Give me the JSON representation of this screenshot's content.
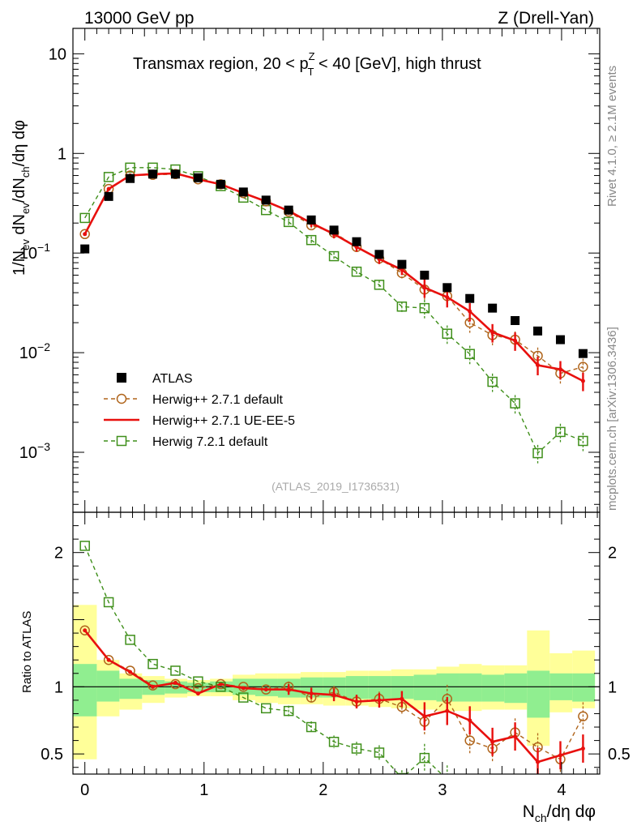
{
  "chart_data": [
    {
      "type": "scatter",
      "panel": "main",
      "header_left": "13000 GeV pp",
      "header_right": "Z (Drell-Yan)",
      "title": "Transmax region, 20 < p_T^Z < 40 [GeV], high thrust",
      "title_parts": {
        "pre": "Transmax region, 20 < p",
        "sup": "Z",
        "sub": "T",
        "post": " < 40 [GeV], high thrust"
      },
      "ylabel": "1/N_ev dN_ev/dN_ch/dη dφ",
      "yscale": "log",
      "ylim": [
        0.00025,
        18
      ],
      "xlim": [
        -0.1,
        4.32
      ],
      "y_ticks": [
        {
          "value": 10,
          "label": "10"
        },
        {
          "value": 1,
          "label": "1"
        },
        {
          "value": 0.1,
          "base": "10",
          "exp": "−1"
        },
        {
          "value": 0.01,
          "base": "10",
          "exp": "−2"
        },
        {
          "value": 0.001,
          "base": "10",
          "exp": "−3"
        }
      ],
      "side_label_top": "Rivet 4.1.0, ≥ 2.1M events",
      "side_label_bottom": "mcplots.cern.ch [arXiv:1306.3436]",
      "analysis_id": "(ATLAS_2019_I1736531)",
      "x": [
        0.0,
        0.2,
        0.38,
        0.57,
        0.76,
        0.95,
        1.14,
        1.33,
        1.52,
        1.71,
        1.9,
        2.09,
        2.28,
        2.47,
        2.66,
        2.85,
        3.04,
        3.23,
        3.42,
        3.61,
        3.8,
        3.99,
        4.18
      ],
      "series": [
        {
          "name": "ATLAS",
          "style": "data",
          "values": [
            0.11,
            0.37,
            0.56,
            0.62,
            0.62,
            0.57,
            0.49,
            0.41,
            0.34,
            0.27,
            0.215,
            0.17,
            0.13,
            0.097,
            0.077,
            0.06,
            0.045,
            0.035,
            0.028,
            0.021,
            0.0165,
            0.0135,
            0.0098
          ]
        },
        {
          "name": "Herwig++ 2.7.1 default",
          "style": "circle",
          "values": [
            0.155,
            0.44,
            0.6,
            0.61,
            0.62,
            0.55,
            0.49,
            0.4,
            0.33,
            0.26,
            0.19,
            0.16,
            0.115,
            0.088,
            0.063,
            0.043,
            0.037,
            0.02,
            0.015,
            0.0135,
            0.0093,
            0.0062,
            0.0072
          ]
        },
        {
          "name": "Herwig++ 2.7.1 UE-EE-5",
          "style": "line",
          "values": [
            0.155,
            0.44,
            0.6,
            0.62,
            0.63,
            0.55,
            0.49,
            0.4,
            0.33,
            0.265,
            0.2,
            0.155,
            0.115,
            0.087,
            0.068,
            0.045,
            0.036,
            0.026,
            0.016,
            0.0132,
            0.0075,
            0.0068,
            0.0052
          ]
        },
        {
          "name": "Herwig 7.2.1 default",
          "style": "square",
          "values": [
            0.225,
            0.58,
            0.72,
            0.72,
            0.69,
            0.59,
            0.47,
            0.36,
            0.27,
            0.205,
            0.135,
            0.093,
            0.065,
            0.048,
            0.029,
            0.028,
            0.0155,
            0.0097,
            0.0051,
            0.0031,
            0.00098,
            0.0016,
            0.0013
          ]
        }
      ]
    },
    {
      "type": "scatter",
      "panel": "ratio",
      "ylabel": "Ratio to ATLAS",
      "xlabel": "N_ch/dη dφ",
      "ylim": [
        0.35,
        2.3
      ],
      "y_ticks": [
        {
          "value": 2,
          "label": "2"
        },
        {
          "value": 1,
          "label": "1"
        },
        {
          "value": 0.5,
          "label": "0.5"
        }
      ],
      "x_ticks": [
        {
          "value": 0,
          "label": "0"
        },
        {
          "value": 1,
          "label": "1"
        },
        {
          "value": 2,
          "label": "2"
        },
        {
          "value": 3,
          "label": "3"
        },
        {
          "value": 4,
          "label": "4"
        }
      ],
      "x": [
        0.0,
        0.2,
        0.38,
        0.57,
        0.76,
        0.95,
        1.14,
        1.33,
        1.52,
        1.71,
        1.9,
        2.09,
        2.28,
        2.47,
        2.66,
        2.85,
        3.04,
        3.23,
        3.42,
        3.61,
        3.8,
        3.99,
        4.18
      ],
      "bin_edges": [
        -0.1,
        0.1,
        0.29,
        0.48,
        0.67,
        0.86,
        1.05,
        1.24,
        1.43,
        1.62,
        1.81,
        2.0,
        2.19,
        2.38,
        2.57,
        2.76,
        2.95,
        3.14,
        3.33,
        3.52,
        3.71,
        3.9,
        4.09,
        4.28
      ],
      "band_yellow": [
        [
          0.46,
          1.61
        ],
        [
          0.78,
          1.2
        ],
        [
          0.83,
          1.1
        ],
        [
          0.88,
          1.08
        ],
        [
          0.92,
          1.06
        ],
        [
          0.93,
          1.05
        ],
        [
          0.93,
          1.06
        ],
        [
          0.9,
          1.09
        ],
        [
          0.88,
          1.1
        ],
        [
          0.87,
          1.1
        ],
        [
          0.87,
          1.11
        ],
        [
          0.86,
          1.11
        ],
        [
          0.86,
          1.12
        ],
        [
          0.85,
          1.12
        ],
        [
          0.84,
          1.13
        ],
        [
          0.83,
          1.13
        ],
        [
          0.82,
          1.15
        ],
        [
          0.82,
          1.17
        ],
        [
          0.83,
          1.16
        ],
        [
          0.83,
          1.16
        ],
        [
          0.56,
          1.42
        ],
        [
          0.81,
          1.25
        ],
        [
          0.84,
          1.27
        ]
      ],
      "band_green": [
        [
          0.78,
          1.17
        ],
        [
          0.89,
          1.12
        ],
        [
          0.91,
          1.06
        ],
        [
          0.94,
          1.05
        ],
        [
          0.95,
          1.04
        ],
        [
          0.96,
          1.03
        ],
        [
          0.96,
          1.04
        ],
        [
          0.94,
          1.06
        ],
        [
          0.93,
          1.06
        ],
        [
          0.92,
          1.06
        ],
        [
          0.92,
          1.07
        ],
        [
          0.92,
          1.07
        ],
        [
          0.91,
          1.08
        ],
        [
          0.91,
          1.08
        ],
        [
          0.91,
          1.08
        ],
        [
          0.9,
          1.09
        ],
        [
          0.89,
          1.1
        ],
        [
          0.89,
          1.1
        ],
        [
          0.89,
          1.09
        ],
        [
          0.88,
          1.1
        ],
        [
          0.77,
          1.12
        ],
        [
          0.9,
          1.1
        ],
        [
          0.89,
          1.1
        ]
      ],
      "series": [
        {
          "name": "Herwig++ 2.7.1 default",
          "style": "circle",
          "values": [
            1.42,
            1.2,
            1.12,
            1.01,
            1.02,
            0.99,
            1.02,
            1.0,
            0.98,
            1.0,
            0.92,
            0.96,
            0.89,
            0.91,
            0.85,
            0.74,
            0.91,
            0.6,
            0.54,
            0.66,
            0.55,
            0.46,
            0.78
          ]
        },
        {
          "name": "Herwig++ 2.7.1 UE-EE-5",
          "style": "line",
          "values": [
            1.42,
            1.2,
            1.11,
            1.0,
            1.03,
            0.95,
            1.02,
            0.99,
            0.98,
            0.98,
            0.95,
            0.94,
            0.89,
            0.9,
            0.91,
            0.78,
            0.82,
            0.75,
            0.59,
            0.63,
            0.44,
            0.49,
            0.54
          ]
        },
        {
          "name": "Herwig 7.2.1 default",
          "style": "square",
          "values": [
            2.05,
            1.63,
            1.35,
            1.17,
            1.12,
            1.04,
            1.0,
            0.92,
            0.84,
            0.82,
            0.7,
            0.59,
            0.54,
            0.51,
            0.32,
            0.47,
            0.31,
            null,
            null,
            null,
            null,
            null,
            null
          ]
        }
      ]
    }
  ]
}
